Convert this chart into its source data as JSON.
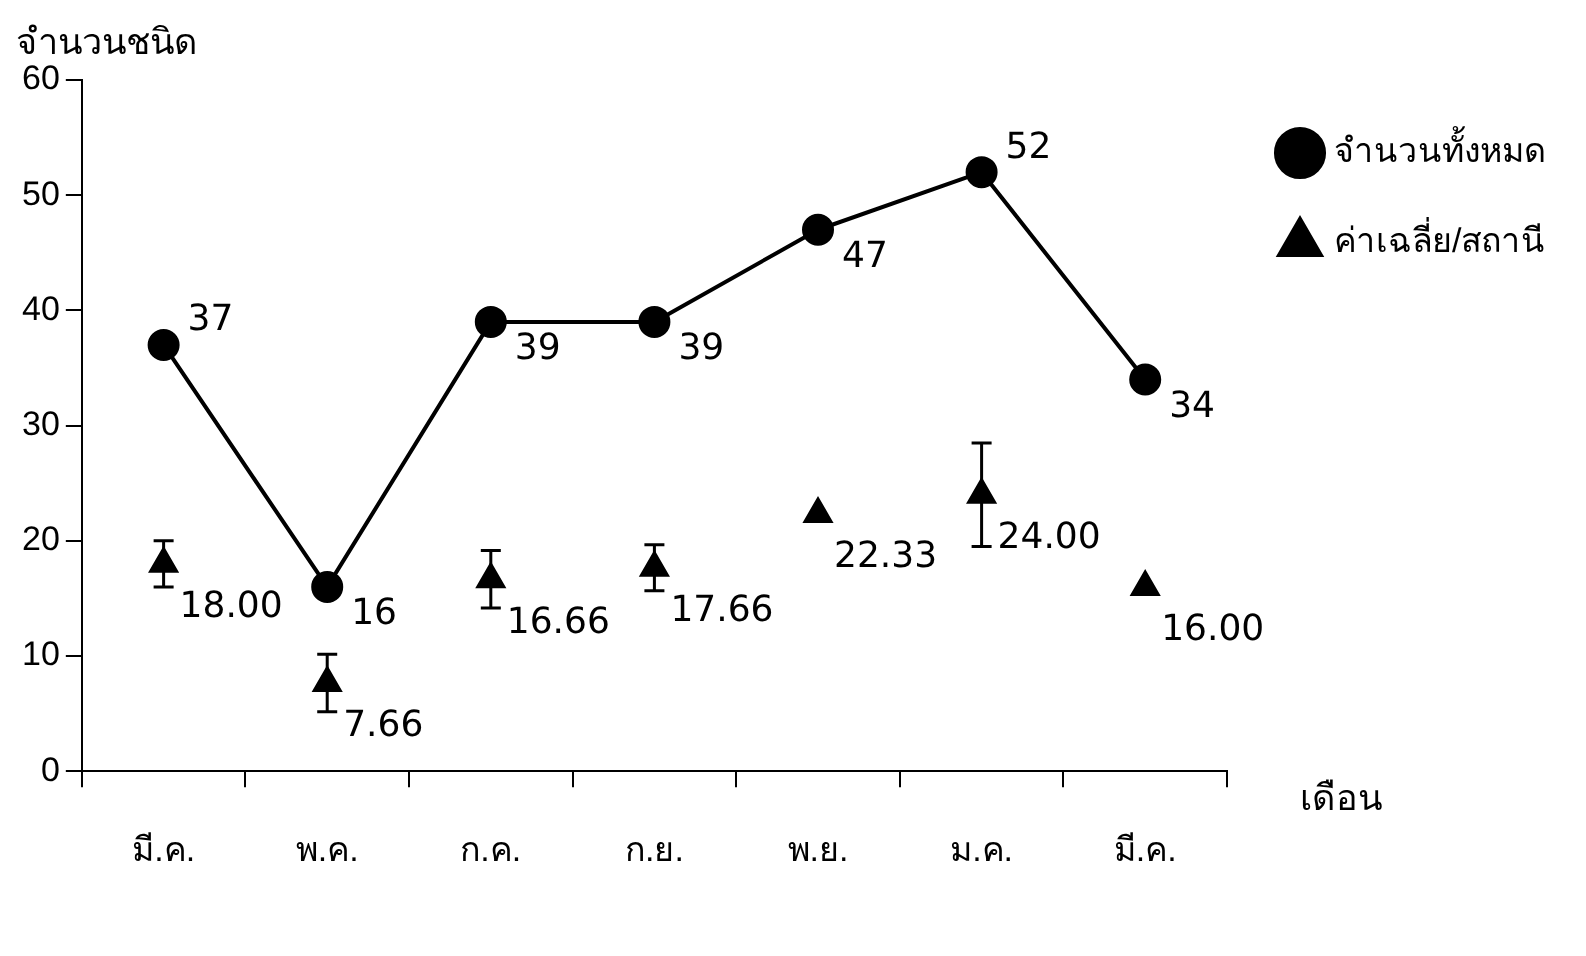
{
  "chart_data": {
    "type": "line",
    "ylabel": "จำนวนชนิด",
    "xlabel": "เดือน",
    "categories": [
      "มี.ค.",
      "พ.ค.",
      "ก.ค.",
      "ก.ย.",
      "พ.ย.",
      "ม.ค.",
      "มี.ค."
    ],
    "ylim": [
      0,
      60
    ],
    "yticks": [
      0,
      10,
      20,
      30,
      40,
      50,
      60
    ],
    "grid": false,
    "legend": "top right",
    "series": [
      {
        "name": "จำนวนทั้งหมด",
        "color": "#000000",
        "marker": "circle",
        "line_style": "solid",
        "values": [
          37,
          16,
          39,
          39,
          47,
          52,
          34
        ],
        "value_labels": [
          "37",
          "16",
          "39",
          "39",
          "47",
          "52",
          "34"
        ]
      },
      {
        "name": "ค่าเฉลี่ย/สถานี",
        "type": "scatter",
        "color": "#000000",
        "marker": "triangle",
        "values": [
          18,
          7.66,
          16.66,
          17.66,
          22.33,
          24,
          16
        ],
        "errors": [
          2,
          2.5,
          2.5,
          2,
          null,
          4.5,
          null
        ],
        "value_labels": [
          "18.00",
          "7.66",
          "16.66",
          "17.66",
          "22.33",
          "24.00",
          "16.00"
        ]
      }
    ]
  }
}
